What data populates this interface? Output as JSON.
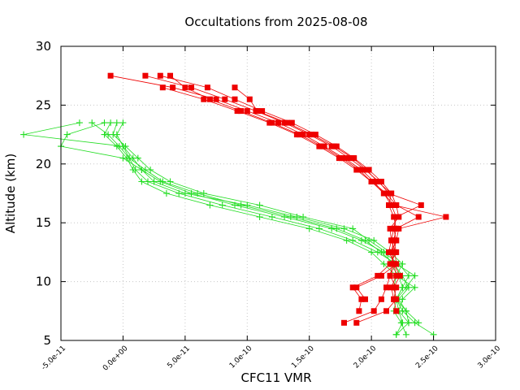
{
  "chart_data": {
    "type": "scatter",
    "title": "Occultations from 2025-08-08",
    "xlabel": "CFC11 VMR",
    "ylabel": "Altitude (km)",
    "xlim": [
      -5e-11,
      3e-10
    ],
    "ylim": [
      5,
      30
    ],
    "x_ticks": [
      {
        "v": -5e-11,
        "label": "-5.0e-11"
      },
      {
        "v": 0.0,
        "label": "0.0e+00"
      },
      {
        "v": 5e-11,
        "label": "5.0e-11"
      },
      {
        "v": 1e-10,
        "label": "1.0e-10"
      },
      {
        "v": 1.5e-10,
        "label": "1.5e-10"
      },
      {
        "v": 2e-10,
        "label": "2.0e-10"
      },
      {
        "v": 2.5e-10,
        "label": "2.5e-10"
      },
      {
        "v": 3e-10,
        "label": "3.0e-10"
      }
    ],
    "y_ticks": [
      {
        "v": 5,
        "label": "5"
      },
      {
        "v": 10,
        "label": "10"
      },
      {
        "v": 15,
        "label": "15"
      },
      {
        "v": 20,
        "label": "20"
      },
      {
        "v": 25,
        "label": "25"
      },
      {
        "v": 30,
        "label": "30"
      }
    ],
    "grid": true,
    "colors": {
      "red": "#ee0000",
      "green": "#22dd22"
    },
    "series": [
      {
        "name": "red-1",
        "color": "red",
        "marker": "square",
        "altitudes": [
          27.5,
          26.5,
          25.5,
          24.5,
          23.5,
          22.5,
          21.5,
          20.5,
          19.5,
          18.5,
          17.5,
          16.5,
          15.5,
          14.5,
          13.5,
          12.5,
          11.5,
          10.5,
          9.5,
          8.5,
          7.5,
          6.5
        ],
        "values": [
          -1e-11,
          4e-11,
          7.5e-11,
          1e-10,
          1.25e-10,
          1.45e-10,
          1.62e-10,
          1.78e-10,
          1.92e-10,
          2.02e-10,
          2.1e-10,
          2.18e-10,
          2.6e-10,
          2.22e-10,
          2.2e-10,
          2.18e-10,
          2.17e-10,
          2.15e-10,
          2.12e-10,
          2.08e-10,
          2.02e-10,
          1.78e-10
        ]
      },
      {
        "name": "red-2",
        "color": "red",
        "marker": "square",
        "altitudes": [
          27.5,
          26.5,
          25.5,
          24.5,
          23.5,
          22.5,
          21.5,
          20.5,
          19.5,
          18.5,
          17.5,
          16.5,
          15.5,
          14.5,
          13.5,
          12.5,
          11.5,
          10.5,
          9.5,
          8.5,
          7.5,
          6.5
        ],
        "values": [
          1.8e-11,
          5.5e-11,
          8.2e-11,
          1.07e-10,
          1.3e-10,
          1.5e-10,
          1.68e-10,
          1.82e-10,
          1.95e-10,
          2.06e-10,
          2.14e-10,
          2.4e-10,
          2.2e-10,
          2.18e-10,
          2.2e-10,
          2.16e-10,
          2.18e-10,
          2.23e-10,
          2.18e-10,
          2.2e-10,
          2.12e-10,
          1.88e-10
        ]
      },
      {
        "name": "red-3",
        "color": "red",
        "marker": "square",
        "altitudes": [
          27.5,
          26.5,
          25.5,
          24.5,
          23.5,
          22.5,
          21.5,
          20.5,
          19.5,
          18.5,
          17.5,
          16.5,
          15.5,
          14.5,
          13.5,
          12.5,
          11.5,
          10.5,
          9.5,
          8.5,
          7.5
        ],
        "values": [
          3e-11,
          6.8e-11,
          9e-11,
          1.12e-10,
          1.36e-10,
          1.55e-10,
          1.72e-10,
          1.86e-10,
          1.98e-10,
          2.08e-10,
          2.16e-10,
          2.2e-10,
          2.38e-10,
          2.2e-10,
          2.18e-10,
          2.2e-10,
          2.15e-10,
          2.05e-10,
          1.85e-10,
          1.92e-10,
          1.9e-10
        ]
      },
      {
        "name": "red-4",
        "color": "red",
        "marker": "square",
        "altitudes": [
          27.5,
          26.5,
          25.5,
          24.5,
          23.5,
          22.5,
          21.5,
          20.5,
          19.5,
          18.5,
          17.5,
          16.5,
          15.5,
          14.5,
          13.5,
          12.5,
          11.5,
          10.5,
          9.5,
          8.5,
          7.5
        ],
        "values": [
          3.8e-11,
          5e-11,
          7e-11,
          9.5e-11,
          1.2e-10,
          1.42e-10,
          1.6e-10,
          1.76e-10,
          1.9e-10,
          2e-10,
          2.12e-10,
          2.2e-10,
          2.22e-10,
          2.15e-10,
          2.16e-10,
          2.14e-10,
          2.19e-10,
          2.15e-10,
          2.2e-10,
          2.18e-10,
          2.2e-10
        ]
      },
      {
        "name": "red-5",
        "color": "red",
        "marker": "square",
        "altitudes": [
          26.5,
          25.5,
          24.5,
          23.5,
          22.5,
          21.5,
          20.5,
          19.5,
          18.5,
          17.5,
          16.5,
          15.5,
          14.5,
          13.5,
          12.5,
          11.5,
          10.5,
          9.5,
          8.5
        ],
        "values": [
          3.2e-11,
          6.5e-11,
          9.2e-11,
          1.18e-10,
          1.4e-10,
          1.58e-10,
          1.74e-10,
          1.88e-10,
          2e-10,
          2.1e-10,
          2.16e-10,
          2.2e-10,
          2.18e-10,
          2.16e-10,
          2.19e-10,
          2.2e-10,
          2.08e-10,
          1.88e-10,
          1.95e-10
        ]
      },
      {
        "name": "red-6",
        "color": "red",
        "marker": "square",
        "altitudes": [
          26.5,
          25.5,
          24.5,
          23.5,
          22.5,
          21.5,
          20.5,
          19.5,
          18.5,
          17.5,
          16.5,
          15.5,
          14.5,
          13.5,
          12.5,
          11.5,
          10.5,
          9.5,
          8.5
        ],
        "values": [
          9e-11,
          1.02e-10,
          1.08e-10,
          1.32e-10,
          1.52e-10,
          1.7e-10,
          1.85e-10,
          1.96e-10,
          2.05e-10,
          2.16e-10,
          2.14e-10,
          2.18e-10,
          2.2e-10,
          2.18e-10,
          2.16e-10,
          2.18e-10,
          2.2e-10,
          2.16e-10,
          2.18e-10
        ]
      },
      {
        "name": "green-1",
        "color": "green",
        "marker": "plus",
        "altitudes": [
          23.5,
          22.5,
          21.5,
          20.5,
          19.5,
          18.5,
          17.5,
          16.5,
          15.5,
          14.5,
          13.5,
          12.5,
          11.5,
          10.5,
          9.5,
          8.5,
          7.5,
          6.5,
          5.5
        ],
        "values": [
          -1.5e-11,
          -4.5e-11,
          -5e-11,
          0.0,
          1.5e-11,
          3e-11,
          5.5e-11,
          9e-11,
          1.3e-10,
          1.68e-10,
          1.92e-10,
          2.1e-10,
          2.22e-10,
          2.3e-10,
          2.25e-10,
          2.2e-10,
          2.25e-10,
          2.35e-10,
          2.5e-10
        ]
      },
      {
        "name": "green-2",
        "color": "green",
        "marker": "plus",
        "altitudes": [
          23.5,
          22.5,
          21.5,
          20.5,
          19.5,
          18.5,
          17.5,
          16.5,
          15.5,
          14.5,
          13.5,
          12.5,
          11.5,
          10.5,
          9.5,
          8.5,
          7.5,
          6.5,
          5.5
        ],
        "values": [
          -3.5e-11,
          -8e-11,
          0.0,
          5e-12,
          1e-11,
          2e-11,
          4.5e-11,
          8e-11,
          1.2e-10,
          1.58e-10,
          1.85e-10,
          2.05e-10,
          2.2e-10,
          2.35e-10,
          2.28e-10,
          2.2e-10,
          2.22e-10,
          2.25e-10,
          2.2e-10
        ]
      },
      {
        "name": "green-3",
        "color": "green",
        "marker": "plus",
        "altitudes": [
          23.5,
          22.5,
          21.5,
          20.5,
          19.5,
          18.5,
          17.5,
          16.5,
          15.5,
          14.5,
          13.5,
          12.5,
          11.5,
          10.5,
          9.5,
          8.5,
          7.5,
          6.5
        ],
        "values": [
          -1e-11,
          -1.5e-11,
          -5e-12,
          3e-12,
          8e-12,
          1.5e-11,
          3.5e-11,
          7e-11,
          1.1e-10,
          1.5e-10,
          1.8e-10,
          2e-10,
          2.1e-10,
          2.2e-10,
          2.35e-10,
          2.25e-10,
          2.22e-10,
          2.3e-10
        ]
      },
      {
        "name": "green-4",
        "color": "green",
        "marker": "plus",
        "altitudes": [
          23.5,
          22.5,
          21.5,
          20.5,
          19.5,
          18.5,
          17.5,
          16.5,
          15.5,
          14.5,
          13.5,
          12.5,
          11.5,
          10.5,
          9.5,
          8.5,
          7.5,
          6.5,
          5.5
        ],
        "values": [
          0.0,
          -5e-12,
          0.0,
          8e-12,
          1.5e-11,
          2.5e-11,
          5e-11,
          1e-10,
          1.4e-10,
          1.78e-10,
          2.02e-10,
          2.15e-10,
          2.25e-10,
          2.2e-10,
          2.18e-10,
          2.2e-10,
          2.18e-10,
          2.24e-10,
          2.28e-10
        ]
      },
      {
        "name": "green-5",
        "color": "green",
        "marker": "plus",
        "altitudes": [
          23.5,
          22.5,
          21.5,
          20.5,
          19.5,
          18.5,
          17.5,
          16.5,
          15.5,
          14.5,
          13.5,
          12.5,
          11.5,
          10.5,
          9.5,
          8.5,
          7.5,
          6.5,
          5.5
        ],
        "values": [
          -5e-12,
          -8e-12,
          2e-12,
          1.2e-11,
          2.2e-11,
          3.8e-11,
          6.5e-11,
          1.1e-10,
          1.45e-10,
          1.85e-10,
          1.98e-10,
          2.12e-10,
          2.15e-10,
          2.22e-10,
          2.25e-10,
          2.2e-10,
          2.28e-10,
          2.3e-10,
          2.2e-10
        ]
      },
      {
        "name": "green-6",
        "color": "green",
        "marker": "plus",
        "altitudes": [
          23.5,
          22.5,
          21.5,
          20.5,
          19.5,
          18.5,
          17.5,
          16.5,
          15.5,
          14.5,
          13.5,
          12.5,
          11.5,
          10.5,
          9.5,
          8.5,
          7.5,
          6.5
        ],
        "values": [
          -2.5e-11,
          -1.2e-11,
          -3e-12,
          5e-12,
          1.8e-11,
          3.2e-11,
          6e-11,
          9.5e-11,
          1.35e-10,
          1.72e-10,
          1.95e-10,
          2.08e-10,
          2.18e-10,
          2.25e-10,
          2.3e-10,
          2.22e-10,
          2.28e-10,
          2.38e-10
        ]
      }
    ]
  }
}
